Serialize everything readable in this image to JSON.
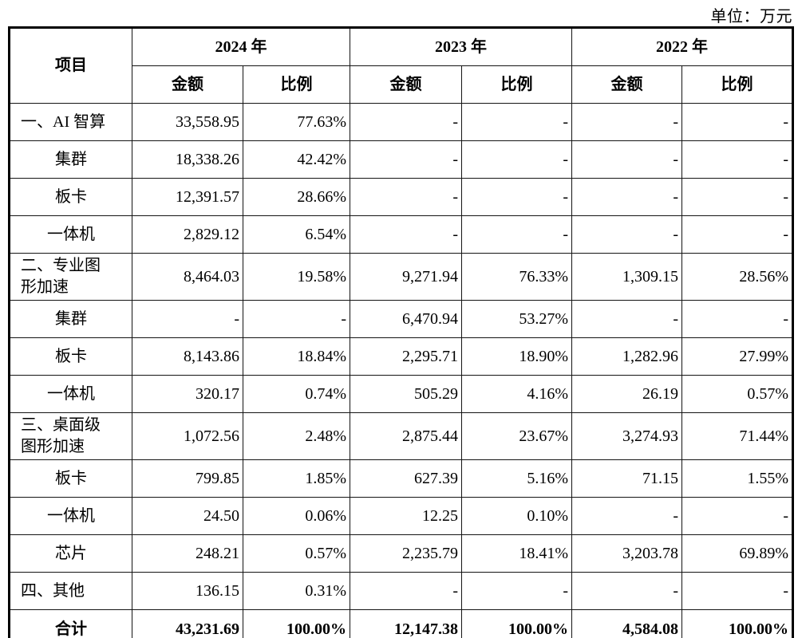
{
  "unit_label": "单位：万元",
  "table": {
    "item_header": "项目",
    "year_groups": [
      {
        "year": "2024 年",
        "sub": [
          "金额",
          "比例"
        ]
      },
      {
        "year": "2023 年",
        "sub": [
          "金额",
          "比例"
        ]
      },
      {
        "year": "2022 年",
        "sub": [
          "金额",
          "比例"
        ]
      }
    ],
    "rows": [
      {
        "label": "一、AI 智算",
        "category": true,
        "values": [
          "33,558.95",
          "77.63%",
          "-",
          "-",
          "-",
          "-"
        ]
      },
      {
        "label": "集群",
        "category": false,
        "values": [
          "18,338.26",
          "42.42%",
          "-",
          "-",
          "-",
          "-"
        ]
      },
      {
        "label": "板卡",
        "category": false,
        "values": [
          "12,391.57",
          "28.66%",
          "-",
          "-",
          "-",
          "-"
        ]
      },
      {
        "label": "一体机",
        "category": false,
        "values": [
          "2,829.12",
          "6.54%",
          "-",
          "-",
          "-",
          "-"
        ]
      },
      {
        "label": "二、专业图形加速",
        "category": true,
        "values": [
          "8,464.03",
          "19.58%",
          "9,271.94",
          "76.33%",
          "1,309.15",
          "28.56%"
        ]
      },
      {
        "label": "集群",
        "category": false,
        "values": [
          "-",
          "-",
          "6,470.94",
          "53.27%",
          "-",
          "-"
        ]
      },
      {
        "label": "板卡",
        "category": false,
        "values": [
          "8,143.86",
          "18.84%",
          "2,295.71",
          "18.90%",
          "1,282.96",
          "27.99%"
        ]
      },
      {
        "label": "一体机",
        "category": false,
        "values": [
          "320.17",
          "0.74%",
          "505.29",
          "4.16%",
          "26.19",
          "0.57%"
        ]
      },
      {
        "label": "三、桌面级图形加速",
        "category": true,
        "values": [
          "1,072.56",
          "2.48%",
          "2,875.44",
          "23.67%",
          "3,274.93",
          "71.44%"
        ]
      },
      {
        "label": "板卡",
        "category": false,
        "values": [
          "799.85",
          "1.85%",
          "627.39",
          "5.16%",
          "71.15",
          "1.55%"
        ]
      },
      {
        "label": "一体机",
        "category": false,
        "values": [
          "24.50",
          "0.06%",
          "12.25",
          "0.10%",
          "-",
          "-"
        ]
      },
      {
        "label": "芯片",
        "category": false,
        "values": [
          "248.21",
          "0.57%",
          "2,235.79",
          "18.41%",
          "3,203.78",
          "69.89%"
        ]
      },
      {
        "label": "四、其他",
        "category": true,
        "values": [
          "136.15",
          "0.31%",
          "-",
          "-",
          "-",
          "-"
        ]
      },
      {
        "label": "合计",
        "category": false,
        "total": true,
        "values": [
          "43,231.69",
          "100.00%",
          "12,147.38",
          "100.00%",
          "4,584.08",
          "100.00%"
        ]
      }
    ]
  }
}
